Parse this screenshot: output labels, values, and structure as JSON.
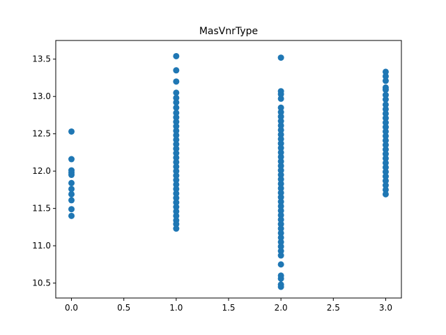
{
  "chart_data": {
    "type": "scatter",
    "title": "MasVnrType",
    "xlabel": "",
    "ylabel": "",
    "xlim": [
      -0.15,
      3.15
    ],
    "ylim": [
      10.3,
      13.75
    ],
    "xticks": [
      0.0,
      0.5,
      1.0,
      1.5,
      2.0,
      2.5,
      3.0
    ],
    "xtick_labels": [
      "0.0",
      "0.5",
      "1.0",
      "1.5",
      "2.0",
      "2.5",
      "3.0"
    ],
    "yticks": [
      10.5,
      11.0,
      11.5,
      12.0,
      12.5,
      13.0,
      13.5
    ],
    "ytick_labels": [
      "10.5",
      "11.0",
      "11.5",
      "12.0",
      "12.5",
      "13.0",
      "13.5"
    ],
    "grid": false,
    "marker_color": "#1f77b4",
    "points": [
      {
        "x": 0,
        "y": 12.53
      },
      {
        "x": 0,
        "y": 12.16
      },
      {
        "x": 0,
        "y": 12.01
      },
      {
        "x": 0,
        "y": 11.98
      },
      {
        "x": 0,
        "y": 11.95
      },
      {
        "x": 0,
        "y": 11.84
      },
      {
        "x": 0,
        "y": 11.76
      },
      {
        "x": 0,
        "y": 11.69
      },
      {
        "x": 0,
        "y": 11.61
      },
      {
        "x": 0,
        "y": 11.49
      },
      {
        "x": 0,
        "y": 11.4
      },
      {
        "x": 1,
        "y": 13.54
      },
      {
        "x": 1,
        "y": 13.35
      },
      {
        "x": 1,
        "y": 13.2
      },
      {
        "x": 1,
        "y": 13.05
      },
      {
        "x": 1,
        "y": 12.98
      },
      {
        "x": 1,
        "y": 12.92
      },
      {
        "x": 1,
        "y": 12.85
      },
      {
        "x": 1,
        "y": 12.78
      },
      {
        "x": 1,
        "y": 12.72
      },
      {
        "x": 1,
        "y": 12.66
      },
      {
        "x": 1,
        "y": 12.6
      },
      {
        "x": 1,
        "y": 12.54
      },
      {
        "x": 1,
        "y": 12.48
      },
      {
        "x": 1,
        "y": 12.42
      },
      {
        "x": 1,
        "y": 12.36
      },
      {
        "x": 1,
        "y": 12.3
      },
      {
        "x": 1,
        "y": 12.24
      },
      {
        "x": 1,
        "y": 12.18
      },
      {
        "x": 1,
        "y": 12.12
      },
      {
        "x": 1,
        "y": 12.06
      },
      {
        "x": 1,
        "y": 12.0
      },
      {
        "x": 1,
        "y": 11.94
      },
      {
        "x": 1,
        "y": 11.88
      },
      {
        "x": 1,
        "y": 11.82
      },
      {
        "x": 1,
        "y": 11.76
      },
      {
        "x": 1,
        "y": 11.7
      },
      {
        "x": 1,
        "y": 11.64
      },
      {
        "x": 1,
        "y": 11.58
      },
      {
        "x": 1,
        "y": 11.52
      },
      {
        "x": 1,
        "y": 11.46
      },
      {
        "x": 1,
        "y": 11.4
      },
      {
        "x": 1,
        "y": 11.34
      },
      {
        "x": 1,
        "y": 11.29
      },
      {
        "x": 1,
        "y": 11.23
      },
      {
        "x": 2,
        "y": 13.52
      },
      {
        "x": 2,
        "y": 13.07
      },
      {
        "x": 2,
        "y": 13.03
      },
      {
        "x": 2,
        "y": 12.97
      },
      {
        "x": 2,
        "y": 12.85
      },
      {
        "x": 2,
        "y": 12.79
      },
      {
        "x": 2,
        "y": 12.73
      },
      {
        "x": 2,
        "y": 12.67
      },
      {
        "x": 2,
        "y": 12.61
      },
      {
        "x": 2,
        "y": 12.55
      },
      {
        "x": 2,
        "y": 12.49
      },
      {
        "x": 2,
        "y": 12.43
      },
      {
        "x": 2,
        "y": 12.37
      },
      {
        "x": 2,
        "y": 12.31
      },
      {
        "x": 2,
        "y": 12.25
      },
      {
        "x": 2,
        "y": 12.19
      },
      {
        "x": 2,
        "y": 12.13
      },
      {
        "x": 2,
        "y": 12.07
      },
      {
        "x": 2,
        "y": 12.01
      },
      {
        "x": 2,
        "y": 11.95
      },
      {
        "x": 2,
        "y": 11.89
      },
      {
        "x": 2,
        "y": 11.83
      },
      {
        "x": 2,
        "y": 11.77
      },
      {
        "x": 2,
        "y": 11.71
      },
      {
        "x": 2,
        "y": 11.65
      },
      {
        "x": 2,
        "y": 11.59
      },
      {
        "x": 2,
        "y": 11.53
      },
      {
        "x": 2,
        "y": 11.47
      },
      {
        "x": 2,
        "y": 11.41
      },
      {
        "x": 2,
        "y": 11.35
      },
      {
        "x": 2,
        "y": 11.29
      },
      {
        "x": 2,
        "y": 11.23
      },
      {
        "x": 2,
        "y": 11.17
      },
      {
        "x": 2,
        "y": 11.11
      },
      {
        "x": 2,
        "y": 11.05
      },
      {
        "x": 2,
        "y": 10.99
      },
      {
        "x": 2,
        "y": 10.93
      },
      {
        "x": 2,
        "y": 10.87
      },
      {
        "x": 2,
        "y": 10.75
      },
      {
        "x": 2,
        "y": 10.6
      },
      {
        "x": 2,
        "y": 10.56
      },
      {
        "x": 2,
        "y": 10.48
      },
      {
        "x": 2,
        "y": 10.45
      },
      {
        "x": 3,
        "y": 13.33
      },
      {
        "x": 3,
        "y": 13.27
      },
      {
        "x": 3,
        "y": 13.21
      },
      {
        "x": 3,
        "y": 13.12
      },
      {
        "x": 3,
        "y": 13.09
      },
      {
        "x": 3,
        "y": 13.02
      },
      {
        "x": 3,
        "y": 12.96
      },
      {
        "x": 3,
        "y": 12.89
      },
      {
        "x": 3,
        "y": 12.83
      },
      {
        "x": 3,
        "y": 12.77
      },
      {
        "x": 3,
        "y": 12.71
      },
      {
        "x": 3,
        "y": 12.65
      },
      {
        "x": 3,
        "y": 12.59
      },
      {
        "x": 3,
        "y": 12.53
      },
      {
        "x": 3,
        "y": 12.47
      },
      {
        "x": 3,
        "y": 12.41
      },
      {
        "x": 3,
        "y": 12.35
      },
      {
        "x": 3,
        "y": 12.29
      },
      {
        "x": 3,
        "y": 12.23
      },
      {
        "x": 3,
        "y": 12.17
      },
      {
        "x": 3,
        "y": 12.11
      },
      {
        "x": 3,
        "y": 12.05
      },
      {
        "x": 3,
        "y": 11.99
      },
      {
        "x": 3,
        "y": 11.93
      },
      {
        "x": 3,
        "y": 11.87
      },
      {
        "x": 3,
        "y": 11.81
      },
      {
        "x": 3,
        "y": 11.75
      },
      {
        "x": 3,
        "y": 11.69
      }
    ]
  }
}
